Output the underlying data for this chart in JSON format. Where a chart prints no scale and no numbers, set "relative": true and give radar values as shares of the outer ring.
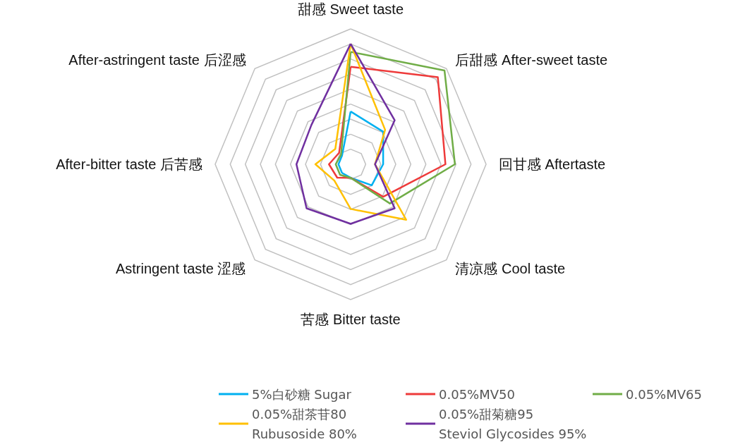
{
  "chart_data": {
    "type": "radar",
    "relative": true,
    "categories": [
      "甜感 Sweet taste",
      "后甜感 After-sweet taste",
      "回甘感 Aftertaste",
      "清凉感 Cool taste",
      "苦感 Bitter taste",
      "Astringent taste 涩感",
      "After-bitter taste 后苦感",
      "After-astringent taste 后涩感"
    ],
    "series": [
      {
        "name": "5%白砂糖 Sugar",
        "color": "#00b0f0",
        "values": [
          0.39,
          0.34,
          0.24,
          0.22,
          0.1,
          0.09,
          0.09,
          0.09
        ]
      },
      {
        "name": "0.05%MV50",
        "color": "#ee3a3a",
        "values": [
          0.72,
          0.91,
          0.7,
          0.34,
          0.1,
          0.14,
          0.16,
          0.12
        ]
      },
      {
        "name": "0.05%MV65",
        "color": "#70ad47",
        "values": [
          0.83,
          0.98,
          0.77,
          0.41,
          0.1,
          0.11,
          0.11,
          0.1
        ]
      },
      {
        "name": "0.05%甜茶苷80\nRubusoside 80%",
        "color": "#ffc000",
        "values": [
          0.89,
          0.36,
          0.18,
          0.58,
          0.33,
          0.17,
          0.26,
          0.16
        ]
      },
      {
        "name": "0.05%甜菊糖95\nSteviol Glycosides 95%",
        "color": "#7030a0",
        "values": [
          0.89,
          0.46,
          0.18,
          0.46,
          0.44,
          0.46,
          0.4,
          0.41
        ]
      }
    ],
    "grid": true,
    "legend": "bottom"
  }
}
